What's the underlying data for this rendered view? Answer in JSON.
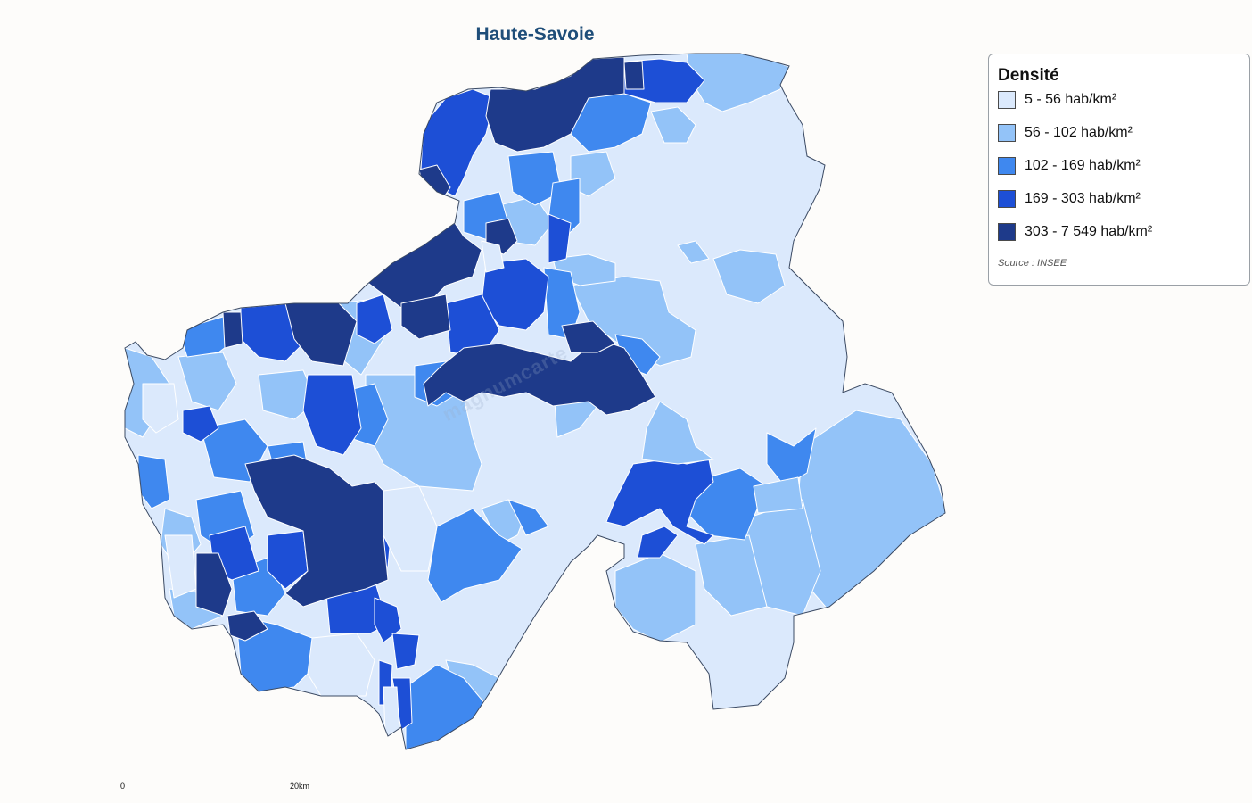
{
  "map": {
    "title": "Haute-Savoie",
    "watermark": "magnumcarte",
    "colors": {
      "class1": "#dbe9fc",
      "class2": "#93c3f8",
      "class3": "#3f88ef",
      "class4": "#1d4fd6",
      "class5": "#1e3a8a",
      "border": "#ffffff",
      "outline": "#3b4a63"
    }
  },
  "legend": {
    "title": "Densité",
    "items": [
      {
        "label": "5 - 56 hab/km²",
        "color": "#dbe9fc"
      },
      {
        "label": "56 - 102 hab/km²",
        "color": "#93c3f8"
      },
      {
        "label": "102 - 169 hab/km²",
        "color": "#3f88ef"
      },
      {
        "label": "169 - 303 hab/km²",
        "color": "#1d4fd6"
      },
      {
        "label": "303 - 7 549 hab/km²",
        "color": "#1e3a8a"
      }
    ],
    "source": "Source : INSEE"
  },
  "scale": {
    "start_label": "0",
    "end_label": "20km"
  }
}
